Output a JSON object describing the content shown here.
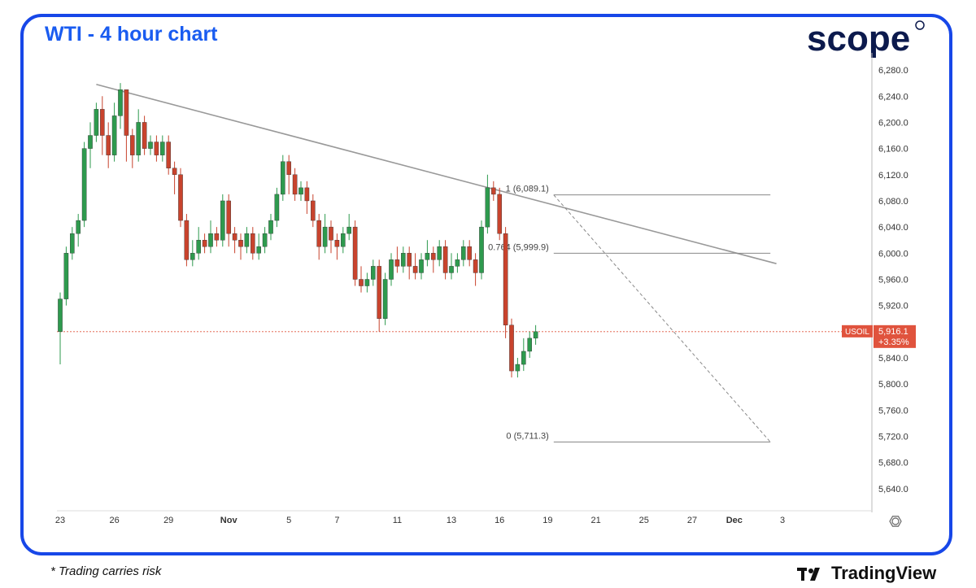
{
  "header": {
    "title": "WTI - 4 hour chart",
    "brand": "scope"
  },
  "footer": {
    "disclaimer": "* Trading carries risk",
    "tv_brand": "TradingView"
  },
  "colors": {
    "up": "#2e9a4e",
    "down": "#c8432d",
    "frame": "#1747e8",
    "title": "#1a5cf0",
    "price_tag": "#e0533d",
    "trendline": "#999999"
  },
  "chart_data": {
    "type": "candlestick",
    "title": "WTI - 4 hour chart",
    "symbol": "USOIL",
    "last_price": "5,916.1",
    "change": "+3.35%",
    "ylim": [
      5610,
      6300
    ],
    "y_ticks": [
      6280,
      6240,
      6200,
      6160,
      6120,
      6080,
      6040,
      6000,
      5960,
      5920,
      5880,
      5840,
      5800,
      5760,
      5720,
      5680,
      5640
    ],
    "y_tick_labels": [
      "6,280.0",
      "6,240.0",
      "6,200.0",
      "6,160.0",
      "6,120.0",
      "6,080.0",
      "6,040.0",
      "6,000.0",
      "5,960.0",
      "5,920.0",
      "5,880.0",
      "5,840.0",
      "5,800.0",
      "5,760.0",
      "5,720.0",
      "5,680.0",
      "5,640.0"
    ],
    "x_tick_labels": [
      "23",
      "26",
      "29",
      "Nov",
      "5",
      "7",
      "11",
      "13",
      "16",
      "19",
      "21",
      "25",
      "27",
      "Dec",
      "3"
    ],
    "x_tick_bar_index": [
      0,
      9,
      18,
      28,
      38,
      46,
      56,
      65,
      73,
      81,
      89,
      97,
      105,
      112,
      120
    ],
    "grid": false,
    "candles": [
      [
        5880,
        5930,
        5830,
        5940
      ],
      [
        5930,
        6000,
        5920,
        6010
      ],
      [
        6000,
        6030,
        5990,
        6040
      ],
      [
        6030,
        6050,
        6010,
        6060
      ],
      [
        6050,
        6160,
        6040,
        6170
      ],
      [
        6160,
        6180,
        6130,
        6200
      ],
      [
        6180,
        6220,
        6170,
        6230
      ],
      [
        6220,
        6180,
        6150,
        6240
      ],
      [
        6180,
        6150,
        6130,
        6200
      ],
      [
        6150,
        6210,
        6140,
        6230
      ],
      [
        6210,
        6250,
        6190,
        6260
      ],
      [
        6250,
        6180,
        6140,
        6250
      ],
      [
        6180,
        6150,
        6130,
        6190
      ],
      [
        6150,
        6200,
        6140,
        6220
      ],
      [
        6200,
        6160,
        6150,
        6210
      ],
      [
        6160,
        6170,
        6150,
        6180
      ],
      [
        6170,
        6150,
        6140,
        6180
      ],
      [
        6150,
        6170,
        6140,
        6180
      ],
      [
        6170,
        6130,
        6120,
        6180
      ],
      [
        6130,
        6120,
        6090,
        6140
      ],
      [
        6120,
        6050,
        6040,
        6130
      ],
      [
        6050,
        5990,
        5980,
        6060
      ],
      [
        5990,
        6000,
        5980,
        6020
      ],
      [
        6000,
        6020,
        5990,
        6040
      ],
      [
        6020,
        6010,
        6000,
        6030
      ],
      [
        6010,
        6030,
        6000,
        6050
      ],
      [
        6030,
        6020,
        6010,
        6040
      ],
      [
        6020,
        6080,
        6010,
        6090
      ],
      [
        6080,
        6030,
        6010,
        6090
      ],
      [
        6030,
        6020,
        6000,
        6040
      ],
      [
        6020,
        6010,
        5990,
        6030
      ],
      [
        6010,
        6030,
        6000,
        6040
      ],
      [
        6030,
        6000,
        5990,
        6040
      ],
      [
        6000,
        6010,
        5990,
        6030
      ],
      [
        6010,
        6030,
        6000,
        6040
      ],
      [
        6030,
        6050,
        6020,
        6060
      ],
      [
        6050,
        6090,
        6040,
        6100
      ],
      [
        6090,
        6140,
        6080,
        6150
      ],
      [
        6140,
        6120,
        6090,
        6150
      ],
      [
        6120,
        6090,
        6080,
        6130
      ],
      [
        6090,
        6100,
        6080,
        6110
      ],
      [
        6100,
        6080,
        6060,
        6110
      ],
      [
        6080,
        6050,
        6040,
        6090
      ],
      [
        6050,
        6010,
        5990,
        6060
      ],
      [
        6010,
        6040,
        6000,
        6060
      ],
      [
        6040,
        6020,
        6000,
        6050
      ],
      [
        6020,
        6010,
        5990,
        6030
      ],
      [
        6010,
        6030,
        6000,
        6040
      ],
      [
        6030,
        6040,
        6020,
        6060
      ],
      [
        6040,
        5960,
        5950,
        6050
      ],
      [
        5960,
        5950,
        5940,
        5980
      ],
      [
        5950,
        5960,
        5940,
        5970
      ],
      [
        5960,
        5980,
        5950,
        5990
      ],
      [
        5980,
        5900,
        5880,
        5990
      ],
      [
        5900,
        5960,
        5890,
        5970
      ],
      [
        5960,
        5990,
        5950,
        6000
      ],
      [
        5990,
        5980,
        5970,
        6010
      ],
      [
        5980,
        6000,
        5970,
        6010
      ],
      [
        6000,
        5980,
        5960,
        6010
      ],
      [
        5980,
        5970,
        5960,
        6000
      ],
      [
        5970,
        5990,
        5960,
        6000
      ],
      [
        5990,
        6000,
        5980,
        6020
      ],
      [
        6000,
        5990,
        5970,
        6010
      ],
      [
        5990,
        6010,
        5980,
        6020
      ],
      [
        6010,
        5970,
        5960,
        6020
      ],
      [
        5970,
        5980,
        5960,
        6000
      ],
      [
        5980,
        5990,
        5970,
        6000
      ],
      [
        5990,
        6010,
        5980,
        6020
      ],
      [
        6010,
        5990,
        5980,
        6020
      ],
      [
        5990,
        5970,
        5950,
        6000
      ],
      [
        5970,
        6040,
        5960,
        6050
      ],
      [
        6040,
        6100,
        6030,
        6120
      ],
      [
        6100,
        6090,
        6080,
        6110
      ],
      [
        6090,
        6030,
        6020,
        6100
      ],
      [
        6030,
        5890,
        5870,
        6040
      ],
      [
        5890,
        5820,
        5810,
        5900
      ],
      [
        5820,
        5830,
        5810,
        5840
      ],
      [
        5830,
        5850,
        5820,
        5870
      ],
      [
        5850,
        5870,
        5840,
        5880
      ],
      [
        5870,
        5880,
        5860,
        5890
      ]
    ],
    "trendline": {
      "from": [
        6,
        6258
      ],
      "to": [
        119,
        5984
      ]
    },
    "fib_levels": [
      {
        "label": "1 (6,089.1)",
        "value": 6089.1
      },
      {
        "label": "0.764 (5,999.9)",
        "value": 5999.9
      },
      {
        "label": "0 (5,711.3)",
        "value": 5711.3
      }
    ]
  }
}
